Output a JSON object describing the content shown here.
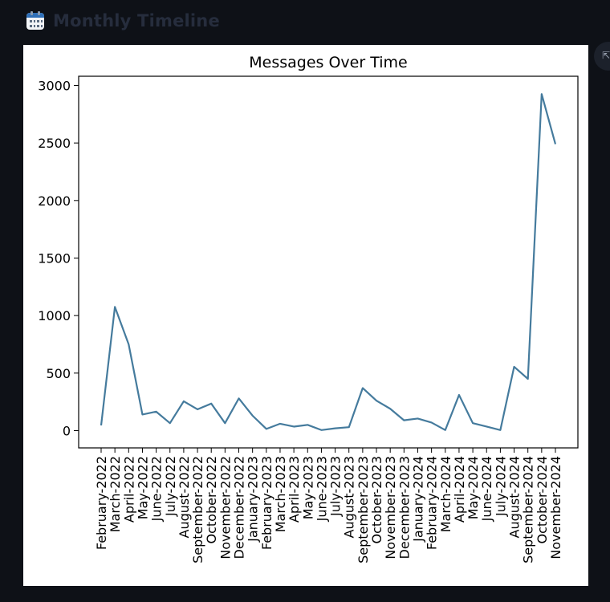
{
  "header": {
    "title": "Monthly Timeline",
    "icon": "calendar-icon"
  },
  "colors": {
    "page_background": "#0e1117",
    "line": "#457b9d",
    "title_muted": "#262d3d"
  },
  "chart_data": {
    "type": "line",
    "title": "Messages Over Time",
    "xlabel": "",
    "ylabel": "",
    "ylim": [
      -150,
      3080
    ],
    "yticks": [
      0,
      500,
      1000,
      1500,
      2000,
      2500,
      3000
    ],
    "grid": false,
    "categories": [
      "February-2022",
      "March-2022",
      "April-2022",
      "May-2022",
      "June-2022",
      "July-2022",
      "August-2022",
      "September-2022",
      "October-2022",
      "November-2022",
      "December-2022",
      "January-2023",
      "February-2023",
      "March-2023",
      "April-2023",
      "May-2023",
      "June-2023",
      "July-2023",
      "August-2023",
      "September-2023",
      "October-2023",
      "November-2023",
      "December-2023",
      "January-2024",
      "February-2024",
      "March-2024",
      "April-2024",
      "May-2024",
      "June-2024",
      "July-2024",
      "August-2024",
      "September-2024",
      "October-2024",
      "November-2024"
    ],
    "values": [
      45,
      1075,
      750,
      140,
      165,
      65,
      255,
      185,
      235,
      65,
      280,
      130,
      15,
      60,
      35,
      50,
      5,
      20,
      30,
      370,
      260,
      190,
      90,
      105,
      70,
      5,
      310,
      65,
      35,
      5,
      555,
      450,
      2925,
      2490
    ]
  }
}
